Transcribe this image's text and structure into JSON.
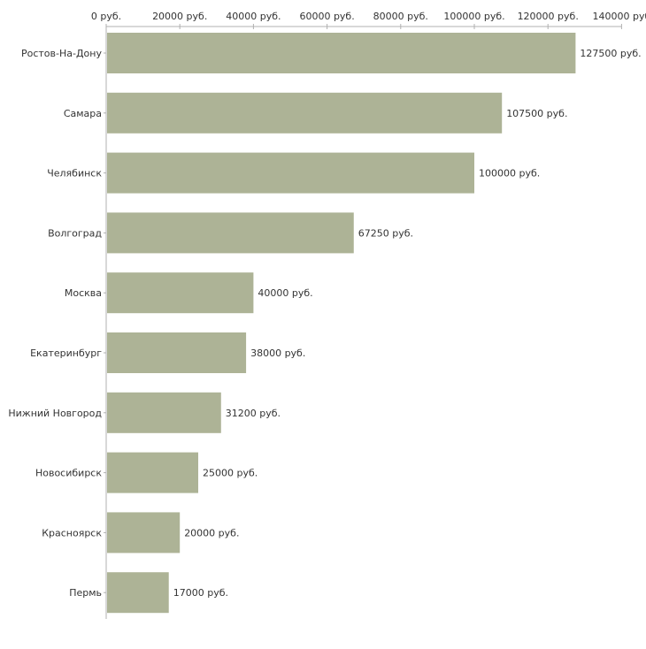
{
  "chart_data": {
    "type": "bar",
    "orientation": "horizontal",
    "title": "",
    "xlabel": "",
    "ylabel": "",
    "xlim": [
      0,
      140000
    ],
    "x_ticks": [
      0,
      20000,
      40000,
      60000,
      80000,
      100000,
      120000,
      140000
    ],
    "x_tick_labels": [
      "0 руб.",
      "20000 руб.",
      "40000 руб.",
      "60000 руб.",
      "80000 руб.",
      "100000 руб.",
      "120000 руб.",
      "140000 руб"
    ],
    "categories": [
      "Ростов-На-Дону",
      "Самара",
      "Челябинск",
      "Волгоград",
      "Москва",
      "Екатеринбург",
      "Нижний Новгород",
      "Новосибирск",
      "Красноярск",
      "Пермь"
    ],
    "values": [
      127500,
      107500,
      100000,
      67250,
      40000,
      38000,
      31200,
      25000,
      20000,
      17000
    ],
    "value_labels": [
      "127500 руб.",
      "107500 руб.",
      "100000 руб.",
      "67250 руб.",
      "40000 руб.",
      "38000 руб.",
      "31200 руб.",
      "25000 руб.",
      "20000 руб.",
      "17000 руб."
    ],
    "colors": {
      "bar": "#adb396",
      "axis": "#b0b0b0",
      "text": "#333333"
    },
    "grid": false,
    "legend": "none"
  }
}
